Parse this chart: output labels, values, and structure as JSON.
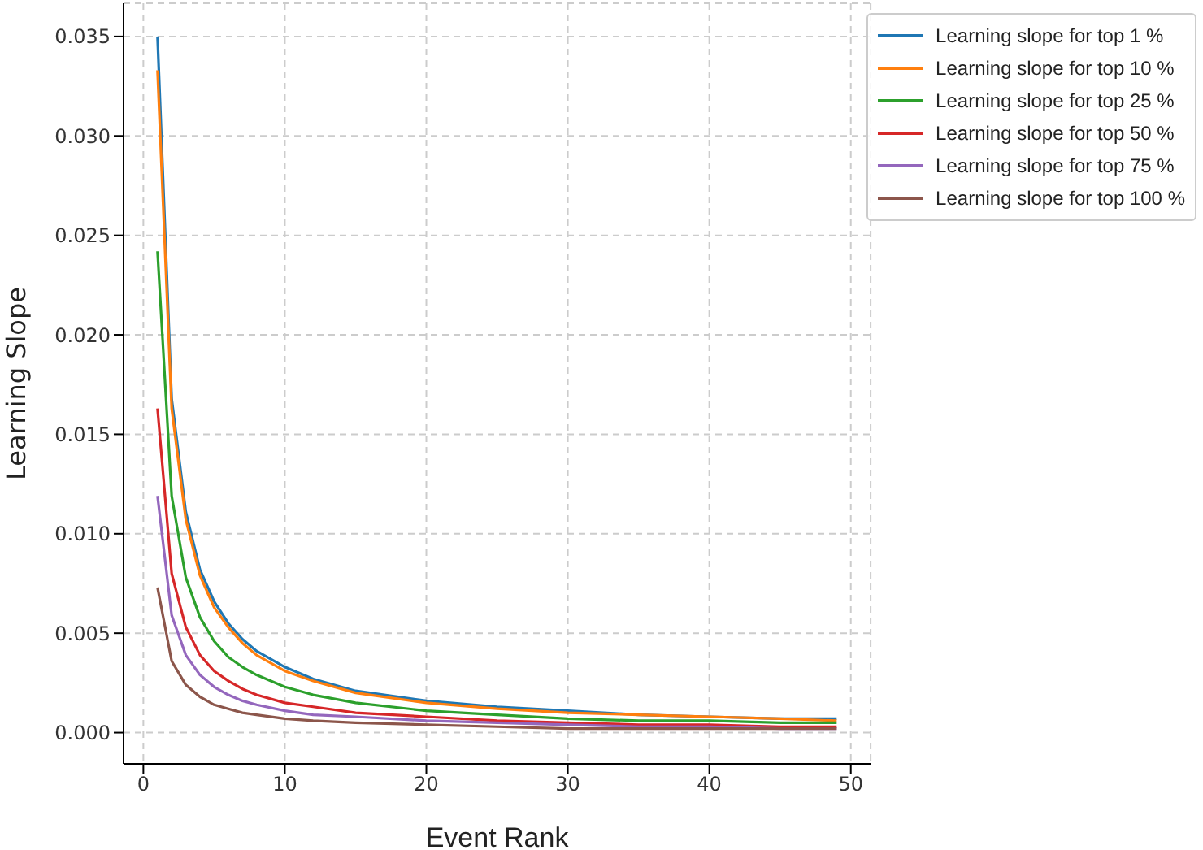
{
  "chart_data": {
    "type": "line",
    "xlabel": "Event Rank",
    "ylabel": "Learning Slope",
    "x": [
      1,
      2,
      3,
      4,
      5,
      6,
      7,
      8,
      10,
      12,
      15,
      20,
      25,
      30,
      35,
      40,
      45,
      49
    ],
    "series": [
      {
        "name": "Learning slope for top 1 %",
        "color": "#1f77b4",
        "values": [
          0.035,
          0.0168,
          0.0111,
          0.0082,
          0.0066,
          0.0055,
          0.0047,
          0.0041,
          0.0033,
          0.0027,
          0.0021,
          0.0016,
          0.0013,
          0.0011,
          0.0009,
          0.0008,
          0.0007,
          0.0007
        ]
      },
      {
        "name": "Learning slope for top 10 %",
        "color": "#ff7f0e",
        "values": [
          0.0333,
          0.0163,
          0.0107,
          0.0079,
          0.0063,
          0.0053,
          0.0045,
          0.0039,
          0.0031,
          0.0026,
          0.002,
          0.0015,
          0.0012,
          0.001,
          0.0009,
          0.0008,
          0.0007,
          0.0006
        ]
      },
      {
        "name": "Learning slope for top 25 %",
        "color": "#2ca02c",
        "values": [
          0.0242,
          0.0119,
          0.0078,
          0.0058,
          0.0046,
          0.0038,
          0.0033,
          0.0029,
          0.0023,
          0.0019,
          0.0015,
          0.0011,
          0.0009,
          0.0007,
          0.0006,
          0.0006,
          0.0005,
          0.0005
        ]
      },
      {
        "name": "Learning slope for top 50 %",
        "color": "#d62728",
        "values": [
          0.0163,
          0.008,
          0.0053,
          0.0039,
          0.0031,
          0.0026,
          0.0022,
          0.0019,
          0.0015,
          0.0013,
          0.001,
          0.0008,
          0.0006,
          0.0005,
          0.0004,
          0.0004,
          0.0003,
          0.0003
        ]
      },
      {
        "name": "Learning slope for top 75 %",
        "color": "#9467bd",
        "values": [
          0.0119,
          0.0059,
          0.0039,
          0.0029,
          0.0023,
          0.0019,
          0.0016,
          0.0014,
          0.0011,
          0.0009,
          0.0008,
          0.0006,
          0.0005,
          0.0004,
          0.0003,
          0.0003,
          0.0002,
          0.0002
        ]
      },
      {
        "name": "Learning slope for top 100 %",
        "color": "#8c564b",
        "values": [
          0.0073,
          0.0036,
          0.0024,
          0.0018,
          0.0014,
          0.0012,
          0.001,
          0.0009,
          0.0007,
          0.0006,
          0.0005,
          0.0004,
          0.0003,
          0.0002,
          0.0002,
          0.0002,
          0.0002,
          0.0002
        ]
      }
    ],
    "xlim": [
      -1.4,
      51.4
    ],
    "xticks": [
      0,
      10,
      20,
      30,
      40,
      50
    ],
    "ylim": [
      -0.00157,
      0.03667
    ],
    "yticks": [
      {
        "value": 0,
        "label": "0.000"
      },
      {
        "value": 0.005,
        "label": "0.005"
      },
      {
        "value": 0.01,
        "label": "0.010"
      },
      {
        "value": 0.015,
        "label": "0.015"
      },
      {
        "value": 0.02,
        "label": "0.020"
      },
      {
        "value": 0.025,
        "label": "0.025"
      },
      {
        "value": 0.03,
        "label": "0.030"
      },
      {
        "value": 0.035,
        "label": "0.035"
      }
    ],
    "grid": true,
    "legend": "top right",
    "line_style": "solid",
    "marker": "none"
  }
}
